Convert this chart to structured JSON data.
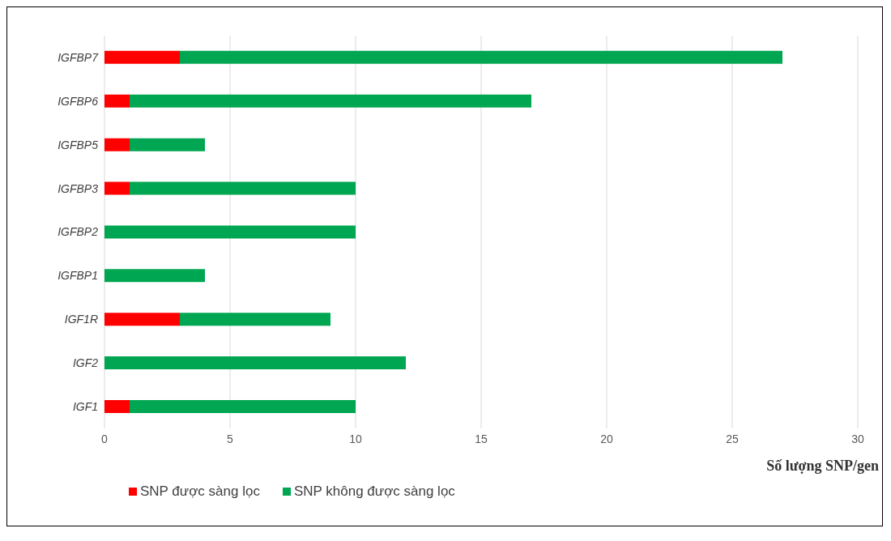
{
  "chart_data": {
    "type": "bar",
    "orientation": "horizontal",
    "stacked": true,
    "categories": [
      "IGFBP7",
      "IGFBP6",
      "IGFBP5",
      "IGFBP3",
      "IGFBP2",
      "IGFBP1",
      "IGF1R",
      "IGF2",
      "IGF1"
    ],
    "series": [
      {
        "name": "SNP được sàng lọc",
        "color": "#ff0000",
        "values": [
          3,
          1,
          1,
          1,
          0,
          0,
          3,
          0,
          1
        ]
      },
      {
        "name": "SNP không được sàng lọc",
        "color": "#00a651",
        "values": [
          24,
          16,
          3,
          9,
          10,
          4,
          6,
          12,
          9
        ]
      }
    ],
    "xlabel": "Số lượng SNP/gen",
    "xlim": [
      0,
      30
    ],
    "xticks": [
      0,
      5,
      10,
      15,
      20,
      25,
      30
    ],
    "grid": "x",
    "legend": "bottom"
  }
}
